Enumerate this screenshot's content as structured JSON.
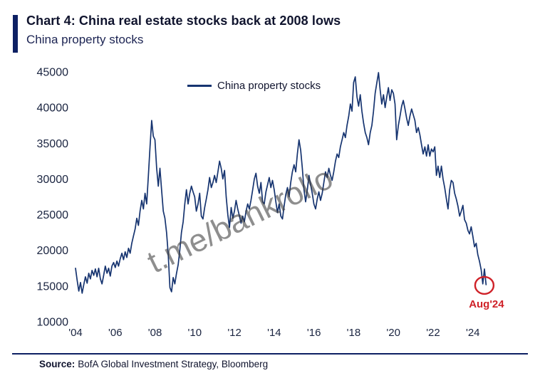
{
  "chart_data": {
    "type": "line",
    "title": "Chart 4: China real estate stocks back at 2008 lows",
    "subtitle": "China property stocks",
    "xlabel": "",
    "ylabel": "",
    "ylim": [
      10000,
      45000
    ],
    "xlim": [
      2004,
      2025.3
    ],
    "grid": false,
    "legend_position": "top-center",
    "axis_color": "#1a2440",
    "y_ticks": [
      45000,
      40000,
      35000,
      30000,
      25000,
      20000,
      15000,
      10000
    ],
    "x_tick_years": [
      2004,
      2006,
      2008,
      2010,
      2012,
      2014,
      2016,
      2018,
      2020,
      2022,
      2024
    ],
    "x_ticks": [
      "'04",
      "'06",
      "'08",
      "'10",
      "'12",
      "'14",
      "'16",
      "'18",
      "'20",
      "'22",
      "'24"
    ],
    "series": [
      {
        "name": "China property stocks",
        "color": "#163470",
        "start_year": 2004,
        "points_per_year": 12,
        "values": [
          17500,
          15800,
          14300,
          15500,
          14000,
          15200,
          16300,
          15400,
          16800,
          16000,
          17200,
          16500,
          17400,
          16300,
          17500,
          16000,
          15300,
          16500,
          17800,
          16800,
          17500,
          16400,
          17800,
          18300,
          17600,
          18500,
          17800,
          18800,
          19600,
          18700,
          19800,
          19000,
          20300,
          19600,
          21000,
          22000,
          23000,
          24500,
          23500,
          25500,
          27000,
          25800,
          28000,
          26500,
          30500,
          34500,
          38200,
          36000,
          35500,
          31500,
          29000,
          31500,
          28500,
          25500,
          24500,
          22500,
          19500,
          14800,
          14200,
          16200,
          15300,
          16800,
          18000,
          20000,
          22500,
          24000,
          26500,
          28500,
          26500,
          28000,
          29000,
          28200,
          27500,
          25500,
          26500,
          28000,
          24800,
          24400,
          26000,
          27200,
          28500,
          30200,
          28800,
          29500,
          30500,
          29500,
          31000,
          32500,
          31500,
          30000,
          31200,
          27500,
          25000,
          23200,
          26000,
          24500,
          25500,
          27000,
          25800,
          24800,
          23800,
          24800,
          24000,
          25500,
          26500,
          25800,
          27000,
          28500,
          30000,
          30800,
          29000,
          28000,
          29500,
          26800,
          26500,
          28200,
          29200,
          30200,
          28800,
          29800,
          28500,
          26800,
          25300,
          26500,
          24800,
          24400,
          26200,
          27800,
          28800,
          27500,
          29500,
          31000,
          32000,
          31000,
          33500,
          35500,
          34000,
          31500,
          28500,
          26800,
          28500,
          30500,
          29200,
          28000,
          26500,
          25800,
          27200,
          28200,
          27000,
          28000,
          29500,
          31000,
          30200,
          31500,
          30500,
          29800,
          31000,
          32500,
          33500,
          33000,
          34500,
          35500,
          36500,
          35800,
          37500,
          38800,
          40500,
          39500,
          43500,
          44300,
          41500,
          40200,
          41800,
          39500,
          37800,
          36500,
          35800,
          34800,
          36500,
          37500,
          39500,
          42000,
          43500,
          44900,
          42500,
          40500,
          41800,
          40000,
          41500,
          42800,
          41000,
          42500,
          42000,
          40500,
          35500,
          37500,
          38800,
          40200,
          41000,
          39800,
          38500,
          37500,
          38800,
          39800,
          39000,
          38200,
          36500,
          37200,
          36200,
          34800,
          33500,
          34500,
          33200,
          34800,
          33200,
          34200,
          33800,
          34500,
          30500,
          31800,
          30200,
          31800,
          30000,
          28800,
          27200,
          25800,
          28500,
          29800,
          29500,
          28000,
          27200,
          26200,
          24800,
          25500,
          26300,
          24300,
          23800,
          22800,
          22300,
          23300,
          22000,
          20500,
          21000,
          19400,
          18500,
          17300,
          15300,
          17400,
          15200
        ]
      }
    ],
    "annotation": {
      "label": "Aug'24",
      "x_year": 2024.58,
      "y_value": 15100,
      "color": "#cf2128"
    }
  },
  "watermark": "t.me/bankrollo",
  "source": {
    "label": "Source:",
    "text": "BofA Global Investment Strategy, Bloomberg"
  }
}
